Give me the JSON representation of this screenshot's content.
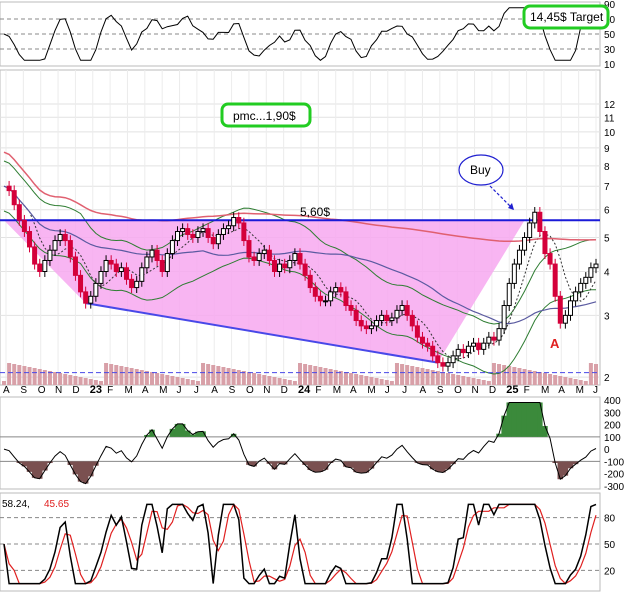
{
  "chart_data": {
    "type": "stock-technical",
    "title": "",
    "price_axis": {
      "scale": "log",
      "range": [
        1.9,
        15
      ],
      "ticks": [
        "2",
        "3",
        "4",
        "5",
        "6",
        "7",
        "8",
        "9",
        "10",
        "11",
        "12"
      ]
    },
    "x_labels": [
      {
        "label": "A",
        "year": false
      },
      {
        "label": "S",
        "year": false
      },
      {
        "label": "O",
        "year": false
      },
      {
        "label": "N",
        "year": false
      },
      {
        "label": "D",
        "year": false
      },
      {
        "label": "23",
        "year": true
      },
      {
        "label": "F",
        "year": false
      },
      {
        "label": "M",
        "year": false
      },
      {
        "label": "A",
        "year": false
      },
      {
        "label": "M",
        "year": false
      },
      {
        "label": "J",
        "year": false
      },
      {
        "label": "J",
        "year": false
      },
      {
        "label": "A",
        "year": false
      },
      {
        "label": "S",
        "year": false
      },
      {
        "label": "O",
        "year": false
      },
      {
        "label": "N",
        "year": false
      },
      {
        "label": "D",
        "year": false
      },
      {
        "label": "24",
        "year": true
      },
      {
        "label": "F",
        "year": false
      },
      {
        "label": "M",
        "year": false
      },
      {
        "label": "A",
        "year": false
      },
      {
        "label": "M",
        "year": false
      },
      {
        "label": "J",
        "year": false
      },
      {
        "label": "J",
        "year": false
      },
      {
        "label": "A",
        "year": false
      },
      {
        "label": "S",
        "year": false
      },
      {
        "label": "O",
        "year": false
      },
      {
        "label": "N",
        "year": false
      },
      {
        "label": "D",
        "year": false
      },
      {
        "label": "25",
        "year": true
      },
      {
        "label": "F",
        "year": false
      },
      {
        "label": "M",
        "year": false
      },
      {
        "label": "A",
        "year": false
      },
      {
        "label": "M",
        "year": false
      },
      {
        "label": "J",
        "year": false
      }
    ],
    "close_series": [
      7.0,
      6.8,
      6.2,
      5.6,
      5.2,
      4.7,
      4.2,
      4.0,
      4.3,
      4.6,
      4.9,
      5.1,
      4.9,
      4.4,
      3.9,
      3.5,
      3.25,
      3.4,
      3.7,
      4.0,
      4.3,
      4.2,
      4.0,
      4.1,
      3.8,
      3.6,
      3.75,
      4.1,
      4.4,
      4.6,
      4.3,
      4.0,
      4.5,
      4.9,
      5.2,
      5.3,
      5.1,
      5.0,
      5.2,
      5.3,
      5.0,
      4.8,
      5.1,
      5.3,
      5.4,
      5.7,
      5.5,
      4.9,
      4.4,
      4.3,
      4.5,
      4.6,
      4.3,
      4.0,
      4.2,
      4.1,
      4.3,
      4.5,
      4.2,
      3.9,
      3.6,
      3.4,
      3.3,
      3.3,
      3.5,
      3.6,
      3.5,
      3.2,
      3.1,
      2.9,
      2.8,
      2.75,
      2.8,
      2.9,
      3.0,
      2.9,
      2.95,
      3.1,
      3.2,
      3.0,
      2.8,
      2.6,
      2.5,
      2.45,
      2.3,
      2.2,
      2.15,
      2.2,
      2.3,
      2.4,
      2.35,
      2.45,
      2.5,
      2.4,
      2.5,
      2.6,
      2.55,
      2.75,
      3.2,
      3.7,
      4.2,
      4.6,
      5.0,
      5.5,
      5.9,
      5.2,
      4.5,
      4.2,
      3.4,
      2.85,
      3.0,
      3.3,
      3.5,
      3.7,
      3.85,
      4.1,
      4.2
    ],
    "resistance_line": {
      "label": "5,60$",
      "value": 5.6
    },
    "support_line": {
      "value": 2.2
    },
    "annotations": {
      "buy_label": "Buy",
      "pmc_label": "pmc...1,90$",
      "target_label": "14,45$ Target",
      "wave_label": "A"
    },
    "top_indicator": {
      "ticks": [
        "90",
        "70",
        "50",
        "30",
        "10"
      ],
      "levels": [
        70,
        50,
        30
      ]
    },
    "macd_indicator": {
      "ticks": [
        "400",
        "300",
        "200",
        "100",
        "0",
        "-100",
        "-200",
        "-300"
      ]
    },
    "stoch_indicator": {
      "readout_1": "58.24,",
      "readout_2": "45.65",
      "ticks": [
        "80",
        "50",
        "20"
      ]
    },
    "colors": {
      "price_up": "#000000",
      "price_down": "#d4003a",
      "band": "#2e7d32",
      "sma_long": "#e06070",
      "sma_mid": "#5a5aa0",
      "triangle_fill": "#f7a8f0",
      "resistance": "#1a1ad8",
      "support": "#4848e8",
      "volume": "#d8a0a8",
      "osc_fill": "#7a5050",
      "osc_fill_pos": "#3b8a3b",
      "stoch_k": "#000000",
      "stoch_d": "#e02020",
      "box_border": "#22cc22"
    }
  }
}
